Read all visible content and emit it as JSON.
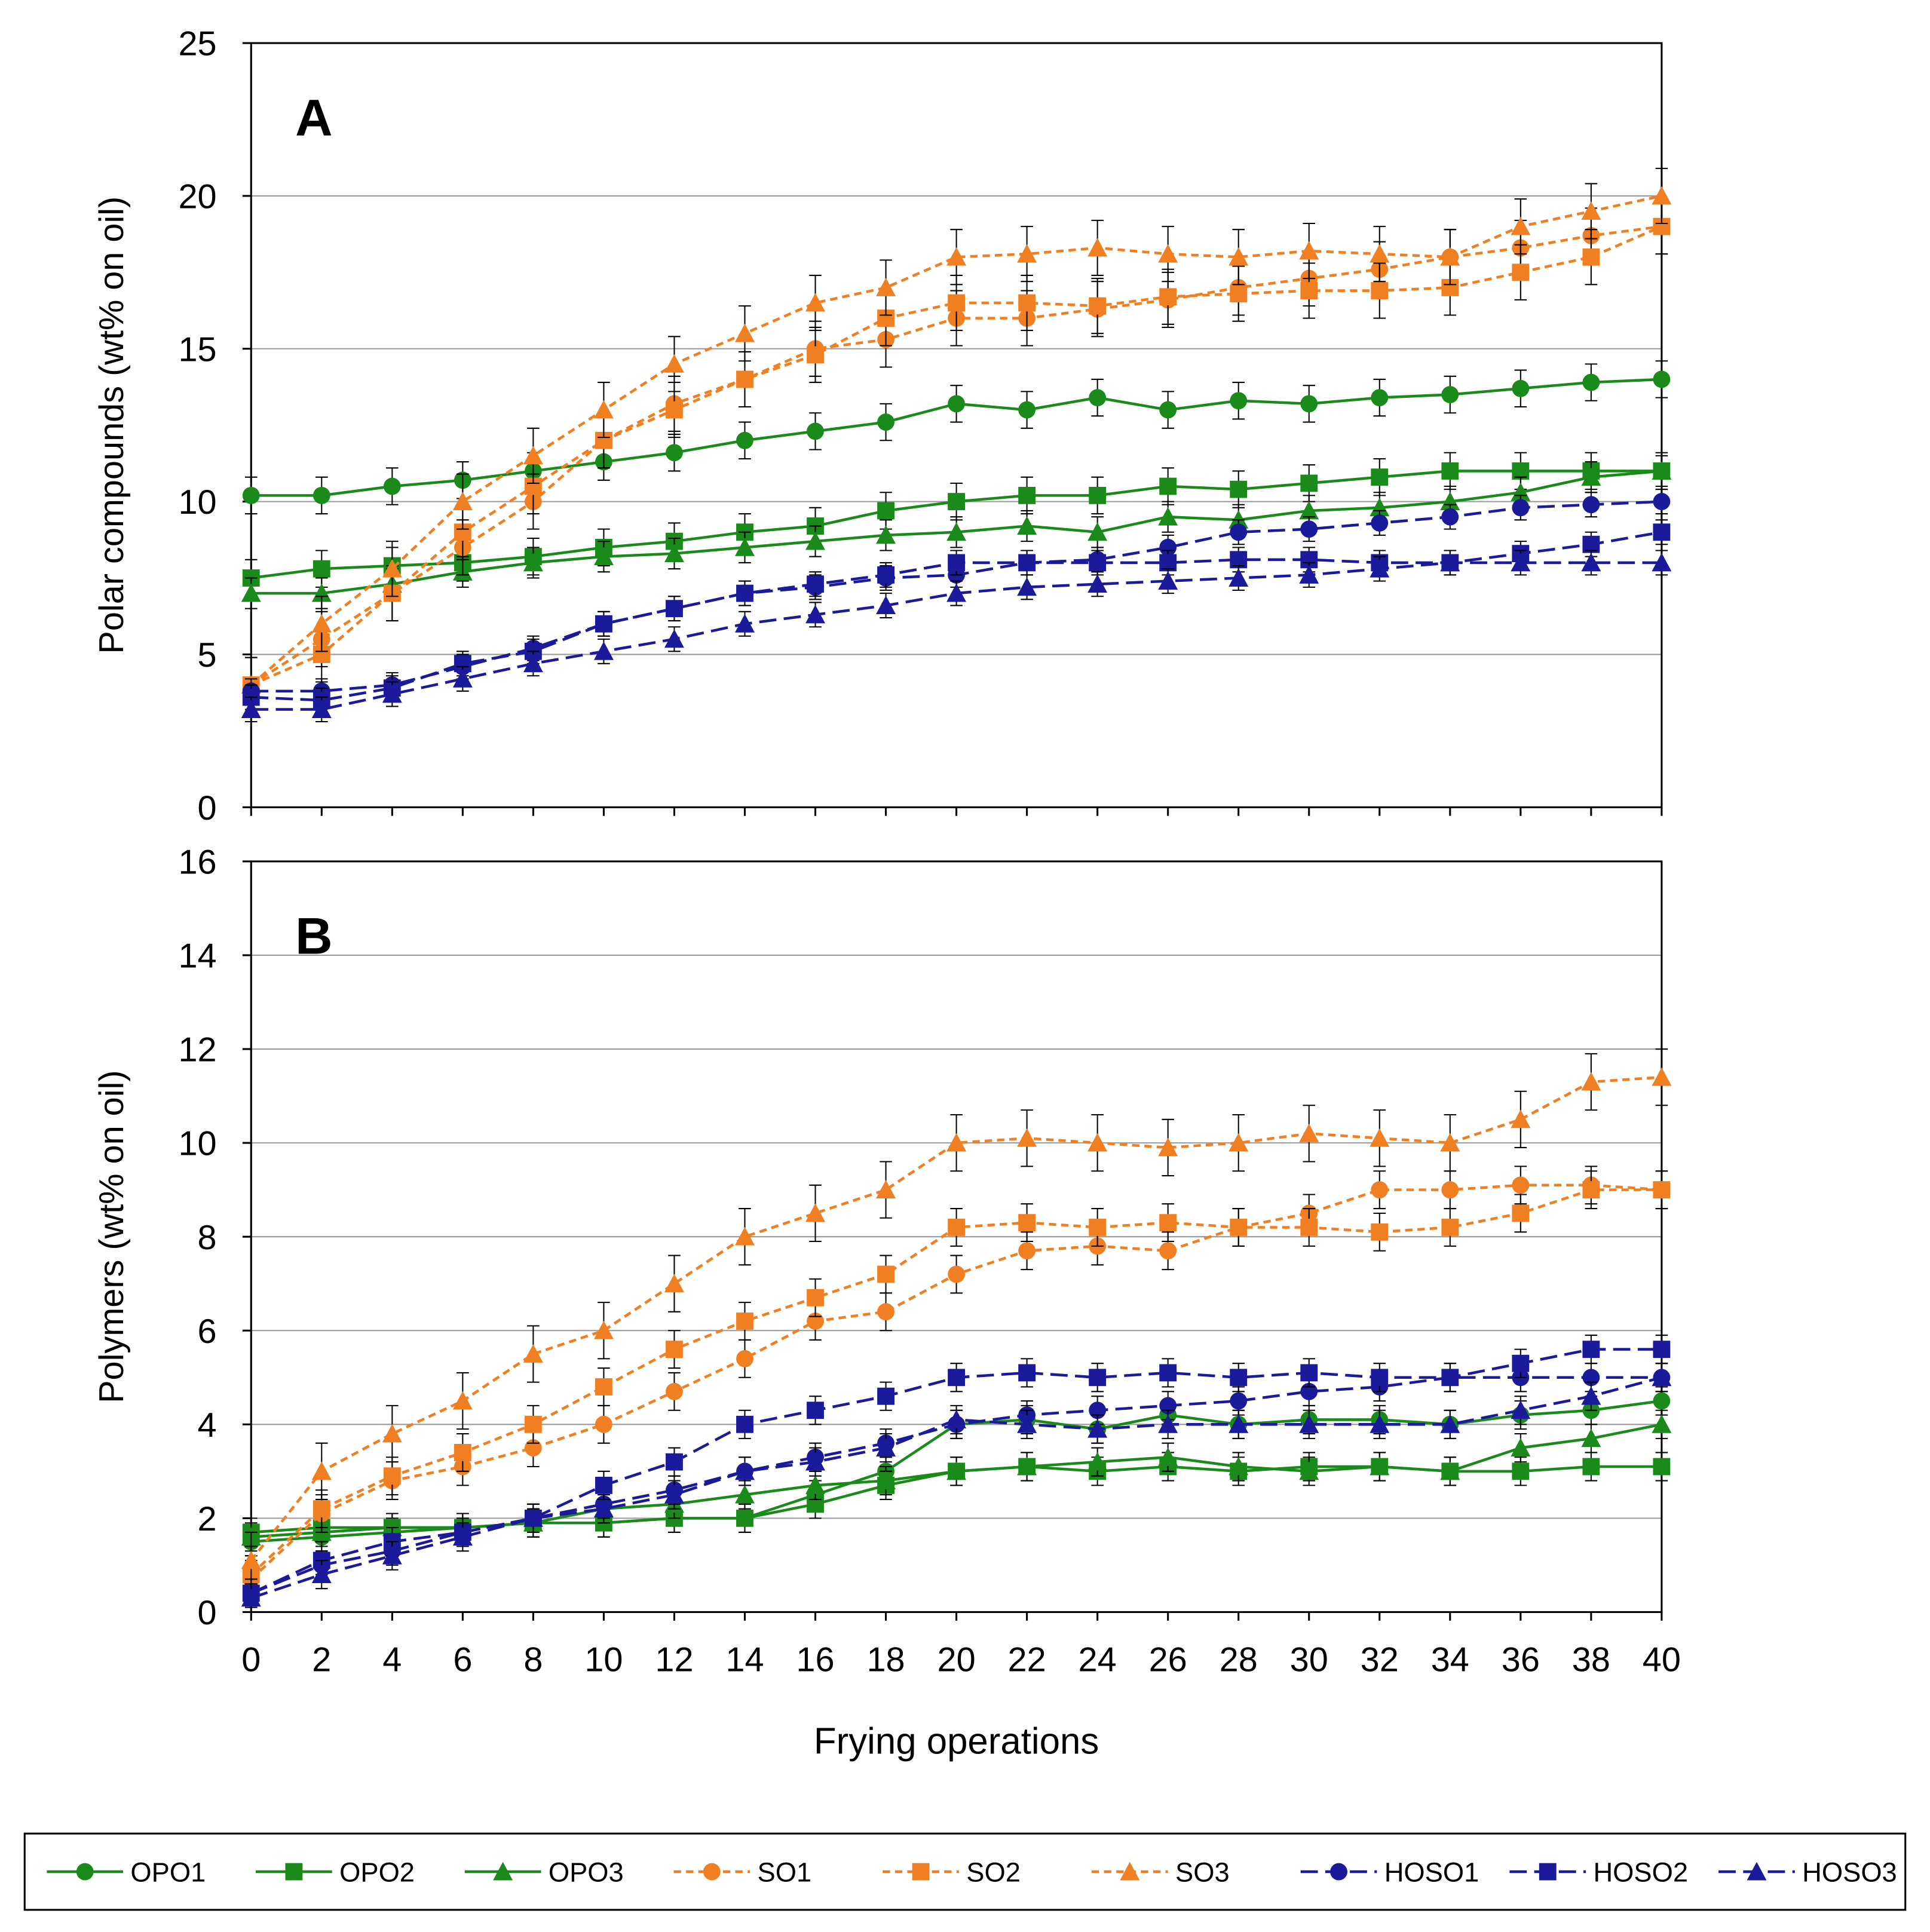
{
  "chart_data": [
    {
      "type": "line",
      "panel": "A",
      "ylabel": "Polar compounds (wt% on oil)",
      "x": [
        0,
        2,
        4,
        6,
        8,
        10,
        12,
        14,
        16,
        18,
        20,
        22,
        24,
        26,
        28,
        30,
        32,
        34,
        36,
        38,
        40
      ],
      "xlim": [
        0,
        40
      ],
      "ylim": [
        0,
        25
      ],
      "yticks": [
        0,
        5,
        10,
        15,
        20,
        25
      ],
      "grid": true,
      "series": [
        {
          "name": "OPO1",
          "color": "#1a8a1a",
          "marker": "circle",
          "dash": "solid",
          "error": 0.6,
          "values": [
            10.2,
            10.2,
            10.5,
            10.7,
            11,
            11.3,
            11.6,
            12,
            12.3,
            12.6,
            13.2,
            13,
            13.4,
            13,
            13.3,
            13.2,
            13.4,
            13.5,
            13.7,
            13.9,
            14
          ]
        },
        {
          "name": "OPO2",
          "color": "#1a8a1a",
          "marker": "square",
          "dash": "solid",
          "error": 0.6,
          "values": [
            7.5,
            7.8,
            7.9,
            8,
            8.2,
            8.5,
            8.7,
            9,
            9.2,
            9.7,
            10,
            10.2,
            10.2,
            10.5,
            10.4,
            10.6,
            10.8,
            11,
            11,
            11,
            11
          ]
        },
        {
          "name": "OPO3",
          "color": "#1a8a1a",
          "marker": "triangle",
          "dash": "solid",
          "error": 0.5,
          "values": [
            7,
            7,
            7.3,
            7.7,
            8,
            8.2,
            8.3,
            8.5,
            8.7,
            8.9,
            9,
            9.2,
            9,
            9.5,
            9.4,
            9.7,
            9.8,
            10,
            10.3,
            10.8,
            11
          ]
        },
        {
          "name": "SO1",
          "color": "#f07f22",
          "marker": "circle",
          "dash": "short",
          "error": 0.9,
          "values": [
            4,
            5.5,
            7,
            8.5,
            10,
            12,
            13.2,
            14,
            15,
            15.3,
            16,
            16,
            16.3,
            16.6,
            17,
            17.3,
            17.6,
            18,
            18.3,
            18.7,
            19
          ]
        },
        {
          "name": "SO2",
          "color": "#f07f22",
          "marker": "square",
          "dash": "short",
          "error": 0.9,
          "values": [
            4,
            5,
            7,
            9,
            10.5,
            12,
            13,
            14,
            14.8,
            16,
            16.5,
            16.5,
            16.4,
            16.7,
            16.8,
            16.9,
            16.9,
            17,
            17.5,
            18,
            19
          ]
        },
        {
          "name": "SO3",
          "color": "#f07f22",
          "marker": "triangle",
          "dash": "short",
          "error": 0.9,
          "values": [
            4,
            6,
            7.8,
            10,
            11.5,
            13,
            14.5,
            15.5,
            16.5,
            17,
            18,
            18.1,
            18.3,
            18.1,
            18,
            18.2,
            18.1,
            18,
            19,
            19.5,
            20
          ]
        },
        {
          "name": "HOSO1",
          "color": "#1a1a9a",
          "marker": "circle",
          "dash": "long",
          "error": 0.4,
          "values": [
            3.8,
            3.8,
            4,
            4.6,
            5.2,
            6,
            6.5,
            7,
            7.2,
            7.5,
            7.6,
            8,
            8.1,
            8.5,
            9,
            9.1,
            9.3,
            9.5,
            9.8,
            9.9,
            10
          ]
        },
        {
          "name": "HOSO2",
          "color": "#1a1a9a",
          "marker": "square",
          "dash": "long",
          "error": 0.4,
          "values": [
            3.6,
            3.5,
            3.9,
            4.7,
            5.1,
            6,
            6.5,
            7,
            7.3,
            7.6,
            8,
            8,
            8,
            8,
            8.1,
            8.1,
            8,
            8,
            8.3,
            8.6,
            9
          ]
        },
        {
          "name": "HOSO3",
          "color": "#1a1a9a",
          "marker": "triangle",
          "dash": "long",
          "error": 0.4,
          "values": [
            3.2,
            3.2,
            3.7,
            4.2,
            4.7,
            5.1,
            5.5,
            6,
            6.3,
            6.6,
            7,
            7.2,
            7.3,
            7.4,
            7.5,
            7.6,
            7.8,
            8,
            8,
            8,
            8
          ]
        }
      ]
    },
    {
      "type": "line",
      "panel": "B",
      "ylabel": "Polymers (wt% on oil)",
      "xlabel": "Frying operations",
      "x": [
        0,
        2,
        4,
        6,
        8,
        10,
        12,
        14,
        16,
        18,
        20,
        22,
        24,
        26,
        28,
        30,
        32,
        34,
        36,
        38,
        40
      ],
      "xlim": [
        0,
        40
      ],
      "xticks": [
        0,
        2,
        4,
        6,
        8,
        10,
        12,
        14,
        16,
        18,
        20,
        22,
        24,
        26,
        28,
        30,
        32,
        34,
        36,
        38,
        40
      ],
      "ylim": [
        0,
        16
      ],
      "yticks": [
        0,
        2,
        4,
        6,
        8,
        10,
        12,
        14,
        16
      ],
      "grid": true,
      "series": [
        {
          "color": "#1a8a1a",
          "marker": "circle",
          "dash": "solid",
          "error": 0.3,
          "values": [
            1.5,
            1.6,
            1.7,
            1.8,
            1.9,
            1.9,
            2,
            2,
            2.5,
            3,
            4,
            4.1,
            3.9,
            4.2,
            4,
            4.1,
            4.1,
            4,
            4.2,
            4.3,
            4.5
          ]
        },
        {
          "color": "#1a8a1a",
          "marker": "square",
          "dash": "solid",
          "error": 0.3,
          "values": [
            1.7,
            1.8,
            1.8,
            1.8,
            1.9,
            1.9,
            2,
            2,
            2.3,
            2.7,
            3,
            3.1,
            3,
            3.1,
            3,
            3.1,
            3.1,
            3,
            3,
            3.1,
            3.1
          ]
        },
        {
          "color": "#1a8a1a",
          "marker": "triangle",
          "dash": "solid",
          "error": 0.3,
          "values": [
            1.6,
            1.7,
            1.8,
            1.8,
            1.9,
            2.2,
            2.3,
            2.5,
            2.7,
            2.8,
            3,
            3.1,
            3.2,
            3.3,
            3.1,
            3,
            3.1,
            3,
            3.5,
            3.7,
            4
          ]
        },
        {
          "color": "#f07f22",
          "marker": "circle",
          "dash": "short",
          "error": 0.4,
          "values": [
            0.7,
            2.1,
            2.8,
            3.1,
            3.5,
            4,
            4.7,
            5.4,
            6.2,
            6.4,
            7.2,
            7.7,
            7.8,
            7.7,
            8.2,
            8.5,
            9,
            9,
            9.1,
            9.1,
            9
          ]
        },
        {
          "color": "#f07f22",
          "marker": "square",
          "dash": "short",
          "error": 0.4,
          "values": [
            0.8,
            2.2,
            2.9,
            3.4,
            4,
            4.8,
            5.6,
            6.2,
            6.7,
            7.2,
            8.2,
            8.3,
            8.2,
            8.3,
            8.2,
            8.2,
            8.1,
            8.2,
            8.5,
            9,
            9
          ]
        },
        {
          "color": "#f07f22",
          "marker": "triangle",
          "dash": "short",
          "error": 0.6,
          "values": [
            1.1,
            3,
            3.8,
            4.5,
            5.5,
            6,
            7,
            8,
            8.5,
            9,
            10,
            10.1,
            10,
            9.9,
            10,
            10.2,
            10.1,
            10,
            10.5,
            11.3,
            11.4
          ]
        },
        {
          "color": "#1a1a9a",
          "marker": "circle",
          "dash": "long",
          "error": 0.3,
          "values": [
            0.4,
            1,
            1.3,
            1.7,
            2,
            2.3,
            2.6,
            3,
            3.3,
            3.6,
            4,
            4.2,
            4.3,
            4.4,
            4.5,
            4.7,
            4.8,
            5,
            5,
            5,
            5
          ]
        },
        {
          "color": "#1a1a9a",
          "marker": "square",
          "dash": "long",
          "error": 0.3,
          "values": [
            0.4,
            1.1,
            1.5,
            1.7,
            2,
            2.7,
            3.2,
            4,
            4.3,
            4.6,
            5,
            5.1,
            5,
            5.1,
            5,
            5.1,
            5,
            5,
            5.3,
            5.6,
            5.6
          ]
        },
        {
          "color": "#1a1a9a",
          "marker": "triangle",
          "dash": "long",
          "error": 0.3,
          "values": [
            0.3,
            0.8,
            1.2,
            1.6,
            2,
            2.2,
            2.5,
            3,
            3.2,
            3.5,
            4.1,
            4,
            3.9,
            4,
            4,
            4,
            4,
            4,
            4.3,
            4.6,
            5
          ]
        }
      ]
    }
  ]
}
